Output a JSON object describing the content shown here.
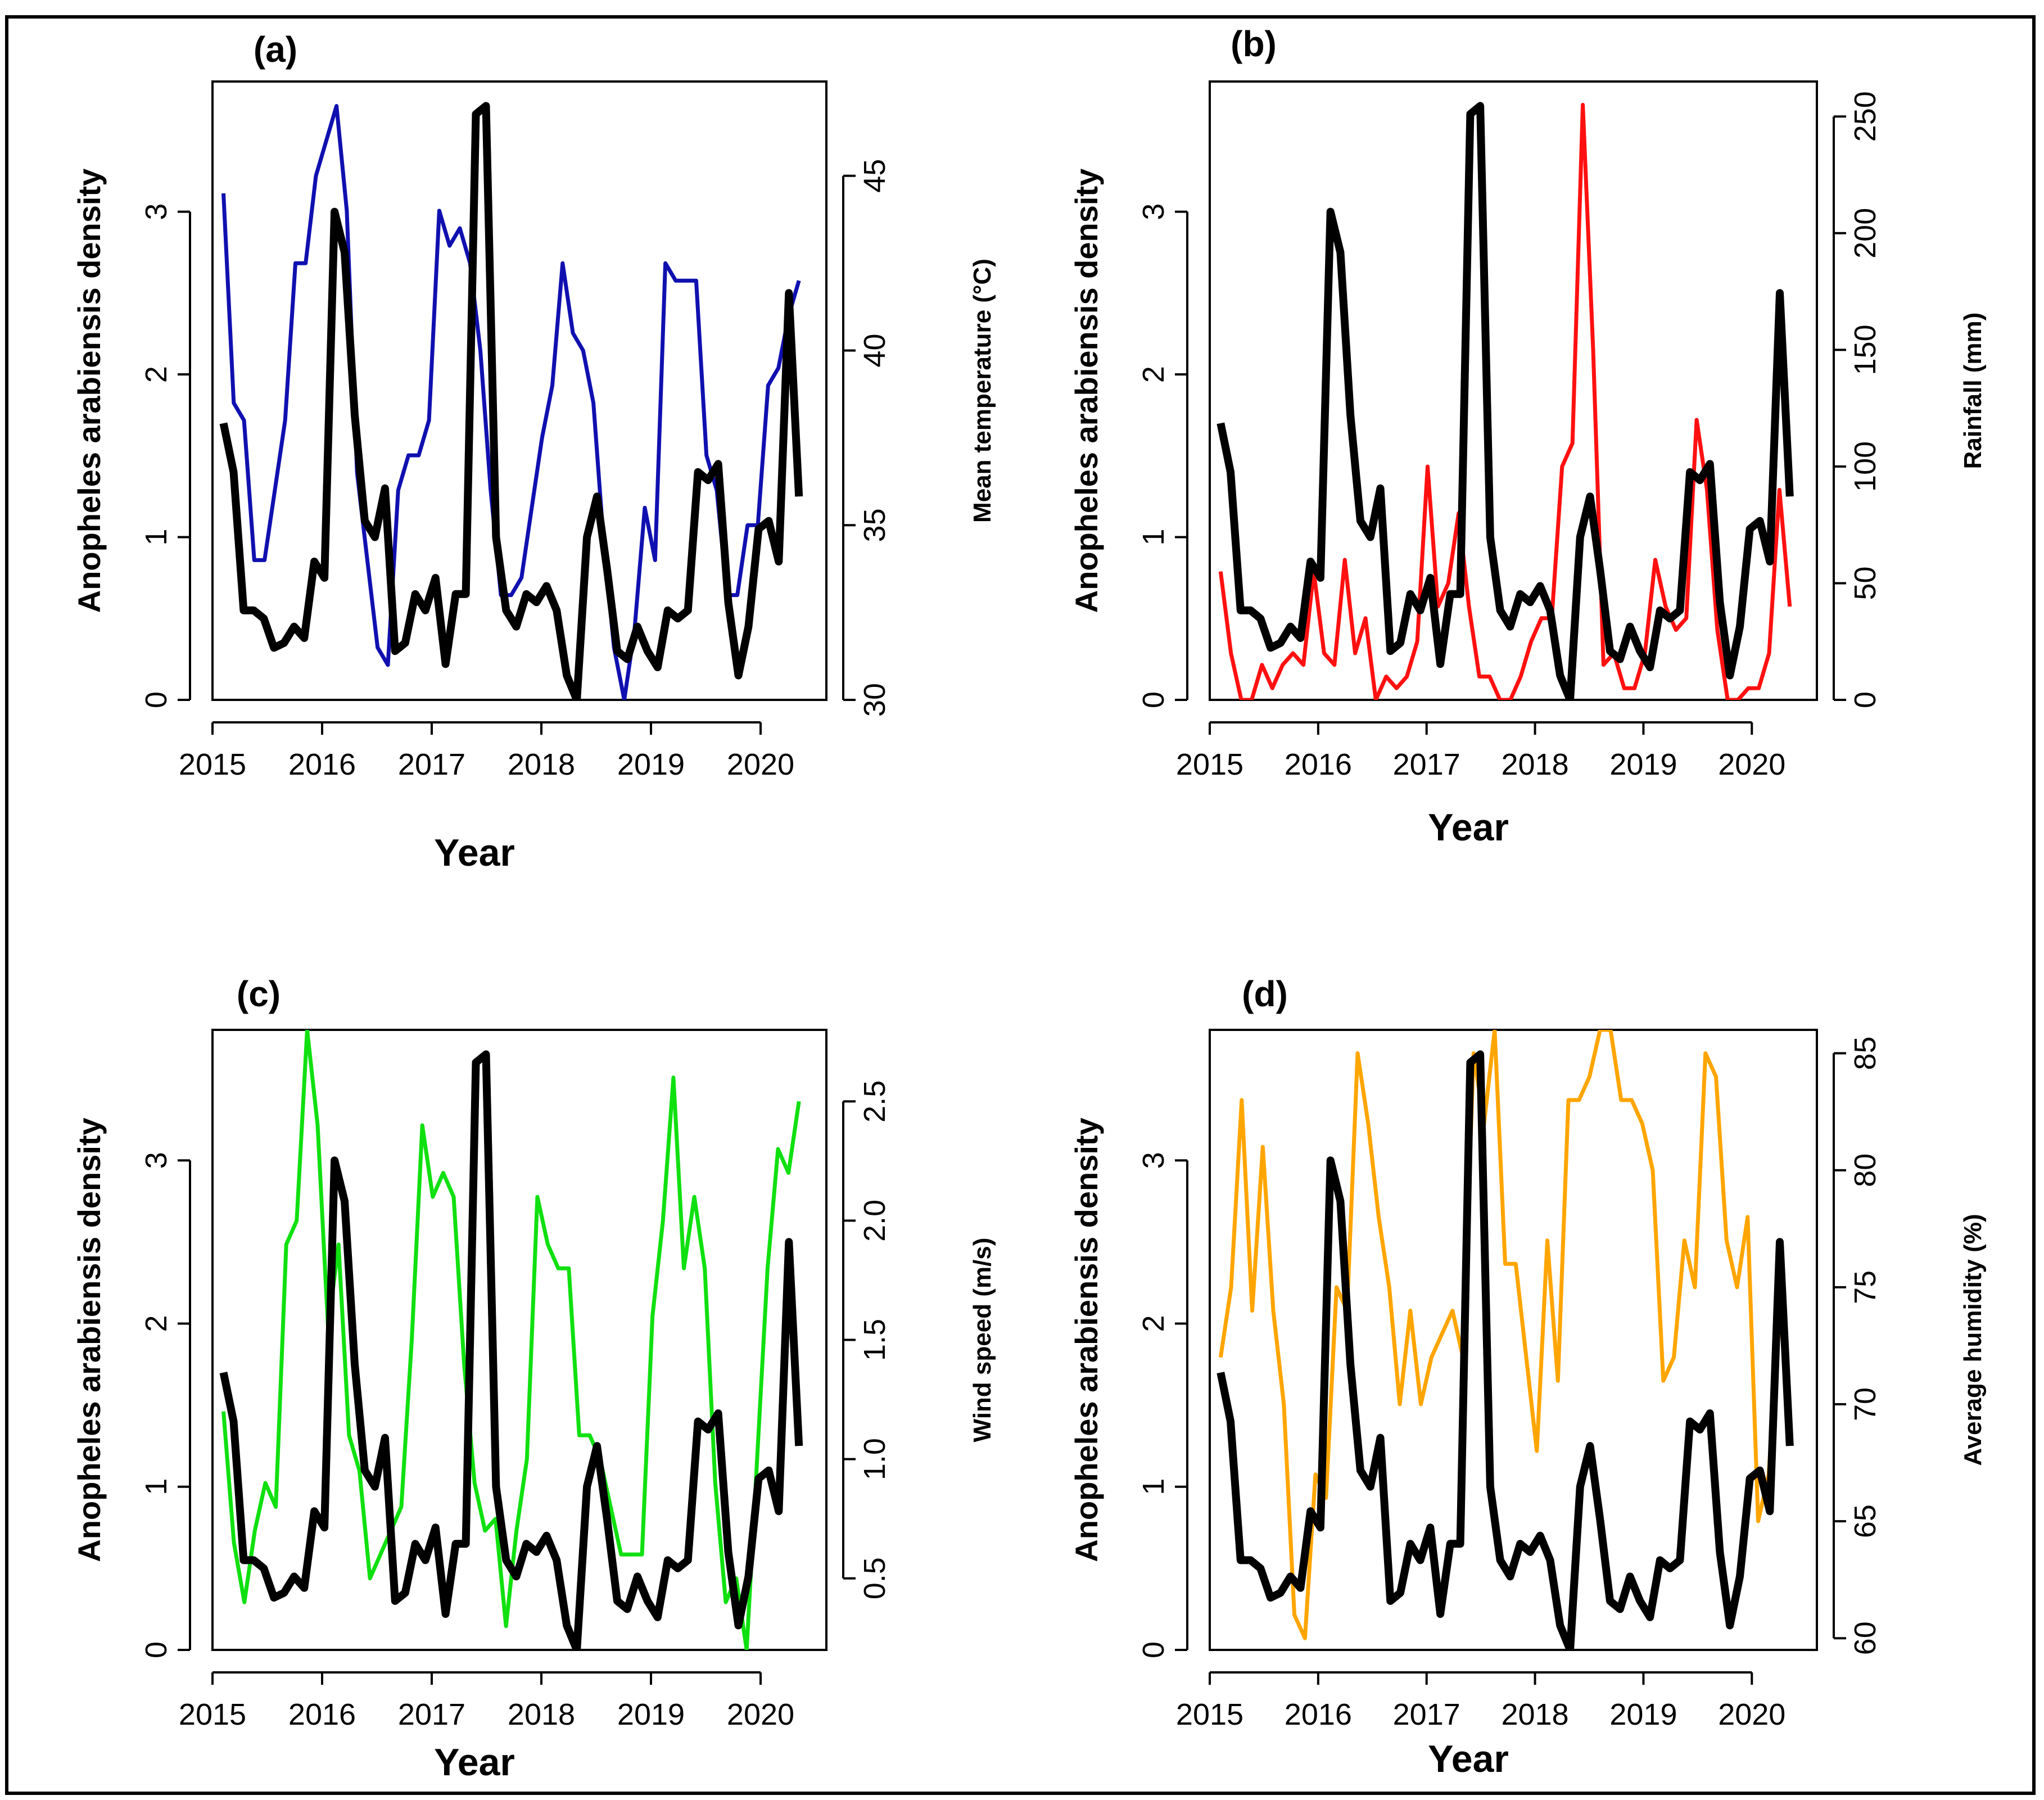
{
  "figure": {
    "border_color": "#000000"
  },
  "density": {
    "label": "Anopheles arabiensis density",
    "color": "#000000",
    "values": [
      1.7,
      1.4,
      0.55,
      0.55,
      0.5,
      0.32,
      0.35,
      0.45,
      0.38,
      0.85,
      0.75,
      3.0,
      2.75,
      1.75,
      1.1,
      1.0,
      1.3,
      0.3,
      0.35,
      0.65,
      0.55,
      0.75,
      0.22,
      0.65,
      0.65,
      3.6,
      3.65,
      1.0,
      0.55,
      0.45,
      0.65,
      0.6,
      0.7,
      0.55,
      0.15,
      0.0,
      1.0,
      1.25,
      0.8,
      0.3,
      0.25,
      0.45,
      0.3,
      0.2,
      0.55,
      0.5,
      0.55,
      1.4,
      1.35,
      1.45,
      0.6,
      0.15,
      0.45,
      1.05,
      1.1,
      0.85,
      2.5,
      1.25
    ]
  },
  "chart_data": [
    {
      "type": "line",
      "panel": "(a)",
      "xlabel": "Year",
      "ylabel": "Anopheles arabiensis density",
      "y2label": "Mean temperature (°C)",
      "xlim": [
        2015,
        2020.6
      ],
      "ylim": [
        0,
        3.8
      ],
      "y2lim": [
        30,
        47.7
      ],
      "x_ticks": [
        2015,
        2016,
        2017,
        2018,
        2019,
        2020
      ],
      "y_ticks": [
        0,
        1,
        2,
        3
      ],
      "y2_ticks": [
        30,
        35,
        40,
        45
      ],
      "y_tick_labels": [
        "0",
        "1",
        "2",
        "3"
      ],
      "y2_tick_labels": [
        "30",
        "35",
        "40",
        "45"
      ],
      "x_tick_labels": [
        "2015",
        "2016",
        "2017",
        "2018",
        "2019",
        "2020"
      ],
      "series2_color": "#1010b0",
      "series2": [
        44.5,
        38.5,
        38.0,
        34.0,
        34.0,
        36.0,
        38.0,
        42.5,
        42.5,
        45.0,
        46.0,
        47.0,
        44.0,
        36.5,
        34.0,
        31.5,
        31.0,
        36.0,
        37.0,
        37.0,
        38.0,
        44.0,
        43.0,
        43.5,
        42.5,
        40.0,
        36.0,
        33.0,
        33.0,
        33.5,
        35.5,
        37.5,
        39.0,
        42.5,
        40.5,
        40.0,
        38.5,
        34.5,
        31.5,
        30.0,
        32.0,
        35.5,
        34.0,
        42.5,
        42.0,
        42.0,
        42.0,
        37.0,
        36.0,
        33.0,
        33.0,
        35.0,
        35.0,
        39.0,
        39.5,
        41.0,
        42.0
      ]
    },
    {
      "type": "line",
      "panel": "(b)",
      "xlabel": "Year",
      "ylabel": "Anopheles arabiensis density",
      "y2label": "Rainfall (mm)",
      "xlim": [
        2015,
        2020.6
      ],
      "ylim": [
        0,
        3.8
      ],
      "y2lim": [
        0,
        265
      ],
      "x_ticks": [
        2015,
        2016,
        2017,
        2018,
        2019,
        2020
      ],
      "y_ticks": [
        0,
        1,
        2,
        3
      ],
      "y2_ticks": [
        0,
        50,
        100,
        150,
        200,
        250
      ],
      "y_tick_labels": [
        "0",
        "1",
        "2",
        "3"
      ],
      "y2_tick_labels": [
        "0",
        "50",
        "100",
        "150",
        "200",
        "250"
      ],
      "x_tick_labels": [
        "2015",
        "2016",
        "2017",
        "2018",
        "2019",
        "2020"
      ],
      "series2_color": "#ff1010",
      "series2": [
        55,
        20,
        0,
        0,
        15,
        5,
        15,
        20,
        15,
        55,
        20,
        15,
        60,
        20,
        35,
        0,
        10,
        5,
        10,
        25,
        100,
        40,
        50,
        80,
        40,
        10,
        10,
        0,
        0,
        10,
        25,
        35,
        35,
        100,
        110,
        255,
        150,
        15,
        20,
        5,
        5,
        20,
        60,
        40,
        30,
        35,
        120,
        90,
        30,
        0,
        0,
        5,
        5,
        20,
        90,
        40
      ]
    },
    {
      "type": "line",
      "panel": "(c)",
      "xlabel": "Year",
      "ylabel": "Anopheles arabiensis density",
      "y2label": "Wind speed (m/s)",
      "xlim": [
        2015,
        2020.6
      ],
      "ylim": [
        0,
        3.8
      ],
      "y2lim": [
        0.2,
        2.8
      ],
      "x_ticks": [
        2015,
        2016,
        2017,
        2018,
        2019,
        2020
      ],
      "y_ticks": [
        0,
        1,
        2,
        3
      ],
      "y2_ticks": [
        0.5,
        1.0,
        1.5,
        2.0,
        2.5
      ],
      "y_tick_labels": [
        "0",
        "1",
        "2",
        "3"
      ],
      "y2_tick_labels": [
        "0.5",
        "1.0",
        "1.5",
        "2.0",
        "2.5"
      ],
      "x_tick_labels": [
        "2015",
        "2016",
        "2017",
        "2018",
        "2019",
        "2020"
      ],
      "series2_color": "#10e010",
      "series2": [
        1.2,
        0.65,
        0.4,
        0.7,
        0.9,
        0.8,
        1.9,
        2.0,
        2.8,
        2.4,
        1.55,
        1.9,
        1.1,
        0.95,
        0.5,
        0.6,
        0.7,
        0.8,
        1.5,
        2.4,
        2.1,
        2.2,
        2.1,
        1.4,
        0.9,
        0.7,
        0.75,
        0.3,
        0.7,
        1.0,
        2.1,
        1.9,
        1.8,
        1.8,
        1.1,
        1.1,
        1.0,
        0.8,
        0.6,
        0.6,
        0.6,
        1.6,
        2.0,
        2.6,
        1.8,
        2.1,
        1.8,
        0.9,
        0.4,
        0.5,
        0.2,
        1.0,
        1.8,
        2.3,
        2.2,
        2.5
      ]
    },
    {
      "type": "line",
      "panel": "(d)",
      "xlabel": "Year",
      "ylabel": "Anopheles arabiensis density",
      "y2label": "Average humidity (%)",
      "xlim": [
        2015,
        2020.6
      ],
      "ylim": [
        0,
        3.8
      ],
      "y2lim": [
        59.5,
        86
      ],
      "x_ticks": [
        2015,
        2016,
        2017,
        2018,
        2019,
        2020
      ],
      "y_ticks": [
        0,
        1,
        2,
        3
      ],
      "y2_ticks": [
        60,
        65,
        70,
        75,
        80,
        85
      ],
      "y_tick_labels": [
        "0",
        "1",
        "2",
        "3"
      ],
      "y2_tick_labels": [
        "60",
        "65",
        "70",
        "75",
        "80",
        "85"
      ],
      "x_tick_labels": [
        "2015",
        "2016",
        "2017",
        "2018",
        "2019",
        "2020"
      ],
      "series2_color": "#ffa500",
      "series2": [
        72,
        75,
        83,
        74,
        81,
        74,
        70,
        61,
        60,
        67,
        66,
        75,
        74,
        85,
        82,
        78,
        75,
        70,
        74,
        70,
        72,
        73,
        74,
        72,
        85,
        82,
        86,
        76,
        76,
        72,
        68,
        77,
        71,
        83,
        83,
        84,
        86,
        86,
        83,
        83,
        82,
        80,
        71,
        72,
        77,
        75,
        85,
        84,
        77,
        75,
        78,
        65,
        67,
        74,
        70
      ]
    }
  ]
}
